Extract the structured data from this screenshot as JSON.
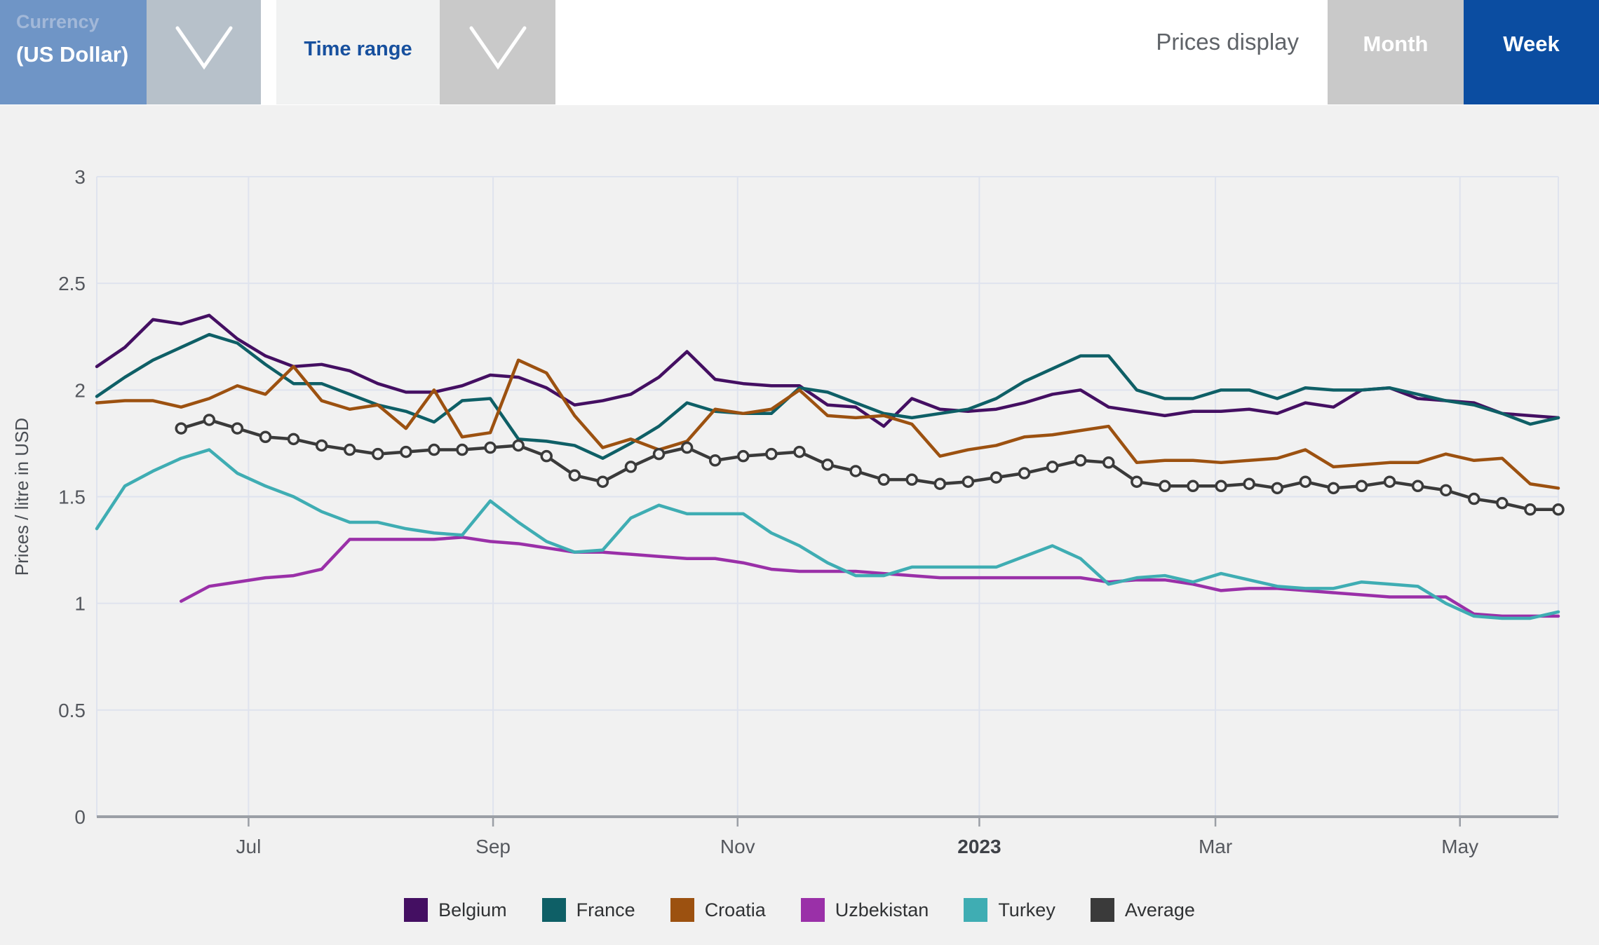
{
  "topbar": {
    "currency_label": "Currency",
    "currency_value": "(US Dollar)",
    "time_range_label": "Time range",
    "prices_display_label": "Prices display",
    "month_label": "Month",
    "week_label": "Week"
  },
  "colors": {
    "page-bg": "#f1f1f1",
    "topbar-bg": "#ffffff",
    "accent-blue": "#0b4da1",
    "currency-bg": "#6f95c6",
    "currency-chevron-bg": "#b7c1ca",
    "timerange-chevron-bg": "#c9c9c9",
    "month-bg": "#c9c9c9"
  },
  "chart_data": {
    "type": "line",
    "title": "",
    "xlabel": "",
    "ylabel": "Prices / litre in USD",
    "ylim": [
      0,
      3
    ],
    "grid": true,
    "legend_position": "bottom",
    "x_unit": "week",
    "n_points": 53,
    "y_ticks": [
      {
        "value": 0,
        "label": "0"
      },
      {
        "value": 0.5,
        "label": "0.5"
      },
      {
        "value": 1,
        "label": "1"
      },
      {
        "value": 1.5,
        "label": "1.5"
      },
      {
        "value": 2,
        "label": "2"
      },
      {
        "value": 2.5,
        "label": "2.5"
      },
      {
        "value": 3,
        "label": "3"
      }
    ],
    "x_ticks": [
      {
        "label": "Jul",
        "pos": 5.4,
        "bold": false
      },
      {
        "label": "Sep",
        "pos": 14.1,
        "bold": false
      },
      {
        "label": "Nov",
        "pos": 22.8,
        "bold": false
      },
      {
        "label": "2023",
        "pos": 31.4,
        "bold": true
      },
      {
        "label": "Mar",
        "pos": 39.8,
        "bold": false
      },
      {
        "label": "May",
        "pos": 48.5,
        "bold": false
      }
    ],
    "series": [
      {
        "name": "Belgium",
        "color": "#440f62",
        "markers": false,
        "values": [
          2.11,
          2.2,
          2.33,
          2.31,
          2.35,
          2.24,
          2.16,
          2.11,
          2.12,
          2.09,
          2.03,
          1.99,
          1.99,
          2.02,
          2.07,
          2.06,
          2.01,
          1.93,
          1.95,
          1.98,
          2.06,
          2.18,
          2.05,
          2.03,
          2.02,
          2.02,
          1.93,
          1.92,
          1.83,
          1.96,
          1.91,
          1.9,
          1.91,
          1.94,
          1.98,
          2.0,
          1.92,
          1.9,
          1.88,
          1.9,
          1.9,
          1.91,
          1.89,
          1.94,
          1.92,
          2.0,
          2.01,
          1.96,
          1.95,
          1.94,
          1.89,
          1.88,
          1.87
        ]
      },
      {
        "name": "France",
        "color": "#0e5f66",
        "markers": false,
        "values": [
          1.97,
          2.06,
          2.14,
          2.2,
          2.26,
          2.22,
          2.12,
          2.03,
          2.03,
          1.98,
          1.93,
          1.9,
          1.85,
          1.95,
          1.96,
          1.77,
          1.76,
          1.74,
          1.68,
          1.75,
          1.83,
          1.94,
          1.9,
          1.89,
          1.89,
          2.01,
          1.99,
          1.94,
          1.89,
          1.87,
          1.89,
          1.91,
          1.96,
          2.04,
          2.1,
          2.16,
          2.16,
          2.0,
          1.96,
          1.96,
          2.0,
          2.0,
          1.96,
          2.01,
          2.0,
          2.0,
          2.01,
          1.98,
          1.95,
          1.93,
          1.89,
          1.84,
          1.87
        ]
      },
      {
        "name": "Croatia",
        "color": "#9c5110",
        "markers": false,
        "values": [
          1.94,
          1.95,
          1.95,
          1.92,
          1.96,
          2.02,
          1.98,
          2.11,
          1.95,
          1.91,
          1.93,
          1.82,
          2.0,
          1.78,
          1.8,
          2.14,
          2.08,
          1.88,
          1.73,
          1.77,
          1.72,
          1.76,
          1.91,
          1.89,
          1.91,
          2.0,
          1.88,
          1.87,
          1.88,
          1.84,
          1.69,
          1.72,
          1.74,
          1.78,
          1.79,
          1.81,
          1.83,
          1.66,
          1.67,
          1.67,
          1.66,
          1.67,
          1.68,
          1.72,
          1.64,
          1.65,
          1.66,
          1.66,
          1.7,
          1.67,
          1.68,
          1.56,
          1.54
        ]
      },
      {
        "name": "Uzbekistan",
        "color": "#9a30a8",
        "markers": false,
        "values": [
          null,
          null,
          null,
          1.01,
          1.08,
          1.1,
          1.12,
          1.13,
          1.16,
          1.3,
          1.3,
          1.3,
          1.3,
          1.31,
          1.29,
          1.28,
          1.26,
          1.24,
          1.24,
          1.23,
          1.22,
          1.21,
          1.21,
          1.19,
          1.16,
          1.15,
          1.15,
          1.15,
          1.14,
          1.13,
          1.12,
          1.12,
          1.12,
          1.12,
          1.12,
          1.12,
          1.1,
          1.11,
          1.11,
          1.09,
          1.06,
          1.07,
          1.07,
          1.06,
          1.05,
          1.04,
          1.03,
          1.03,
          1.03,
          0.95,
          0.94,
          0.94,
          0.94
        ]
      },
      {
        "name": "Turkey",
        "color": "#3fadb3",
        "markers": false,
        "values": [
          1.35,
          1.55,
          1.62,
          1.68,
          1.72,
          1.61,
          1.55,
          1.5,
          1.43,
          1.38,
          1.38,
          1.35,
          1.33,
          1.32,
          1.48,
          1.38,
          1.29,
          1.24,
          1.25,
          1.4,
          1.46,
          1.42,
          1.42,
          1.42,
          1.33,
          1.27,
          1.19,
          1.13,
          1.13,
          1.17,
          1.17,
          1.17,
          1.17,
          1.22,
          1.27,
          1.21,
          1.09,
          1.12,
          1.13,
          1.1,
          1.14,
          1.11,
          1.08,
          1.07,
          1.07,
          1.1,
          1.09,
          1.08,
          1.0,
          0.94,
          0.93,
          0.93,
          0.96
        ]
      },
      {
        "name": "Average",
        "color": "#3a3a3a",
        "markers": true,
        "values": [
          null,
          null,
          null,
          1.82,
          1.86,
          1.82,
          1.78,
          1.77,
          1.74,
          1.72,
          1.7,
          1.71,
          1.72,
          1.72,
          1.73,
          1.74,
          1.69,
          1.6,
          1.57,
          1.64,
          1.7,
          1.73,
          1.67,
          1.69,
          1.7,
          1.71,
          1.65,
          1.62,
          1.58,
          1.58,
          1.56,
          1.57,
          1.59,
          1.61,
          1.64,
          1.67,
          1.66,
          1.57,
          1.55,
          1.55,
          1.55,
          1.56,
          1.54,
          1.57,
          1.54,
          1.55,
          1.57,
          1.55,
          1.53,
          1.49,
          1.47,
          1.44,
          1.44
        ]
      }
    ]
  }
}
